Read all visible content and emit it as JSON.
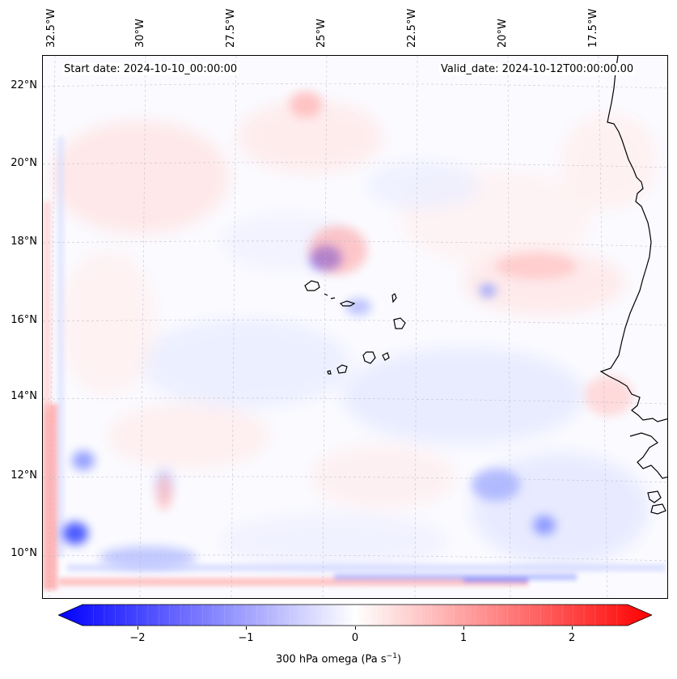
{
  "header": {
    "start_date": "Start date: 2024-10-10_00:00:00",
    "valid_date": "Valid_date: 2024-10-12T00:00:00.00"
  },
  "map": {
    "lon_labels": [
      "32.5°W",
      "30°W",
      "27.5°W",
      "25°W",
      "22.5°W",
      "20°W",
      "17.5°W"
    ],
    "lat_labels": [
      "22°N",
      "20°N",
      "18°N",
      "16°N",
      "14°N",
      "12°N",
      "10°N"
    ],
    "gridlines": true,
    "coastline_color": "#000000",
    "field_colormap": "bwr",
    "features": [
      "Cape Verde islands",
      "West African coastline"
    ]
  },
  "colorbar": {
    "ticks": [
      "−2",
      "−1",
      "0",
      "1",
      "2"
    ],
    "tick_values": [
      -2,
      -1,
      0,
      1,
      2
    ],
    "range": [
      -2.6,
      2.6
    ],
    "label": "300 hPa omega (Pa s",
    "label_sup": "−1",
    "label_end": ")",
    "colors": {
      "min": "#0000ff",
      "mid": "#ffffff",
      "max": "#ff0000"
    },
    "extend": "both"
  }
}
